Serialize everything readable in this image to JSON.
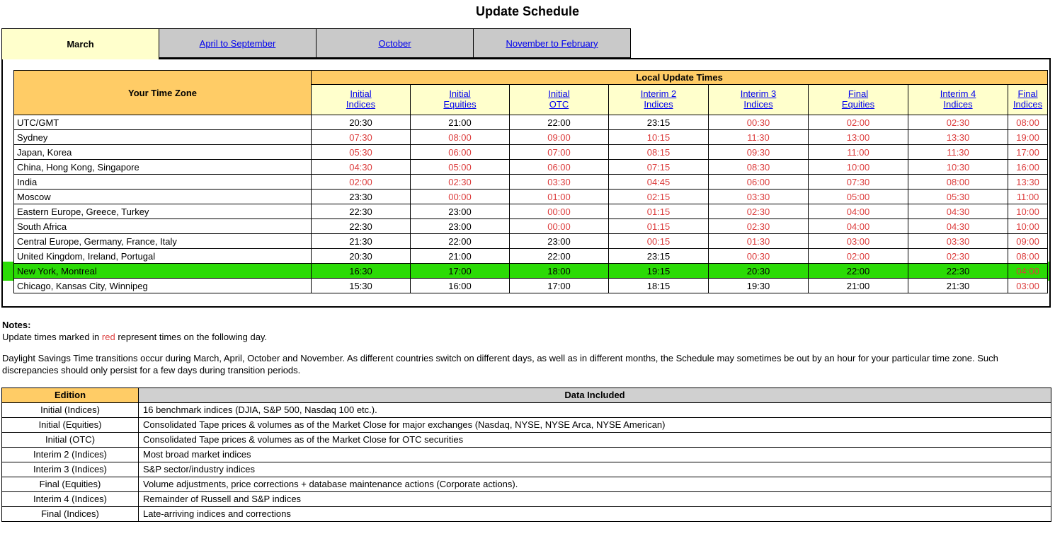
{
  "page": {
    "title": "Update Schedule"
  },
  "colors": {
    "accent_orange": "#FFCC66",
    "pale_yellow": "#FFFFCC",
    "tab_gray": "#C9C9C9",
    "header_gray": "#D0D0D0",
    "highlight_green": "#2BDB06",
    "red_time": "#DC3C3C",
    "link_blue": "#0000EE"
  },
  "tabs": [
    {
      "label": "March",
      "active": true
    },
    {
      "label": "April to September",
      "active": false
    },
    {
      "label": "October",
      "active": false
    },
    {
      "label": "November to February",
      "active": false
    }
  ],
  "schedule_table": {
    "corner_header": "Your Time Zone",
    "group_header": "Local Update Times",
    "columns": [
      "Initial\nIndices",
      "Initial\nEquities",
      "Initial\nOTC",
      "Interim 2\nIndices",
      "Interim 3\nIndices",
      "Final\nEquities",
      "Interim 4\nIndices",
      "Final\nIndices"
    ],
    "rows": [
      {
        "zone": "UTC/GMT",
        "highlight": false,
        "times": [
          "20:30",
          "21:00",
          "22:00",
          "23:15",
          "00:30",
          "02:00",
          "02:30",
          "08:00"
        ],
        "red": [
          false,
          false,
          false,
          false,
          true,
          true,
          true,
          true
        ]
      },
      {
        "zone": "Sydney",
        "highlight": false,
        "times": [
          "07:30",
          "08:00",
          "09:00",
          "10:15",
          "11:30",
          "13:00",
          "13:30",
          "19:00"
        ],
        "red": [
          true,
          true,
          true,
          true,
          true,
          true,
          true,
          true
        ]
      },
      {
        "zone": "Japan, Korea",
        "highlight": false,
        "times": [
          "05:30",
          "06:00",
          "07:00",
          "08:15",
          "09:30",
          "11:00",
          "11:30",
          "17:00"
        ],
        "red": [
          true,
          true,
          true,
          true,
          true,
          true,
          true,
          true
        ]
      },
      {
        "zone": "China, Hong Kong, Singapore",
        "highlight": false,
        "times": [
          "04:30",
          "05:00",
          "06:00",
          "07:15",
          "08:30",
          "10:00",
          "10:30",
          "16:00"
        ],
        "red": [
          true,
          true,
          true,
          true,
          true,
          true,
          true,
          true
        ]
      },
      {
        "zone": "India",
        "highlight": false,
        "times": [
          "02:00",
          "02:30",
          "03:30",
          "04:45",
          "06:00",
          "07:30",
          "08:00",
          "13:30"
        ],
        "red": [
          true,
          true,
          true,
          true,
          true,
          true,
          true,
          true
        ]
      },
      {
        "zone": "Moscow",
        "highlight": false,
        "times": [
          "23:30",
          "00:00",
          "01:00",
          "02:15",
          "03:30",
          "05:00",
          "05:30",
          "11:00"
        ],
        "red": [
          false,
          true,
          true,
          true,
          true,
          true,
          true,
          true
        ]
      },
      {
        "zone": "Eastern Europe, Greece, Turkey",
        "highlight": false,
        "times": [
          "22:30",
          "23:00",
          "00:00",
          "01:15",
          "02:30",
          "04:00",
          "04:30",
          "10:00"
        ],
        "red": [
          false,
          false,
          true,
          true,
          true,
          true,
          true,
          true
        ]
      },
      {
        "zone": "South Africa",
        "highlight": false,
        "times": [
          "22:30",
          "23:00",
          "00:00",
          "01:15",
          "02:30",
          "04:00",
          "04:30",
          "10:00"
        ],
        "red": [
          false,
          false,
          true,
          true,
          true,
          true,
          true,
          true
        ]
      },
      {
        "zone": "Central Europe, Germany, France, Italy",
        "highlight": false,
        "times": [
          "21:30",
          "22:00",
          "23:00",
          "00:15",
          "01:30",
          "03:00",
          "03:30",
          "09:00"
        ],
        "red": [
          false,
          false,
          false,
          true,
          true,
          true,
          true,
          true
        ]
      },
      {
        "zone": "United Kingdom, Ireland, Portugal",
        "highlight": false,
        "times": [
          "20:30",
          "21:00",
          "22:00",
          "23:15",
          "00:30",
          "02:00",
          "02:30",
          "08:00"
        ],
        "red": [
          false,
          false,
          false,
          false,
          true,
          true,
          true,
          true
        ]
      },
      {
        "zone": "New York, Montreal",
        "highlight": true,
        "times": [
          "16:30",
          "17:00",
          "18:00",
          "19:15",
          "20:30",
          "22:00",
          "22:30",
          "04:00"
        ],
        "red": [
          false,
          false,
          false,
          false,
          false,
          false,
          false,
          true
        ]
      },
      {
        "zone": "Chicago, Kansas City, Winnipeg",
        "highlight": false,
        "times": [
          "15:30",
          "16:00",
          "17:00",
          "18:15",
          "19:30",
          "21:00",
          "21:30",
          "03:00"
        ],
        "red": [
          false,
          false,
          false,
          false,
          false,
          false,
          false,
          true
        ]
      }
    ]
  },
  "notes": {
    "heading": "Notes:",
    "line1_prefix": "Update times marked in ",
    "red_word": "red",
    "line1_suffix": " represent times on the following day.",
    "paragraph": "Daylight Savings Time transitions occur during March, April, October and November. As different countries switch on different days, as well as in different months, the Schedule may sometimes be out by an hour for your particular time zone. Such discrepancies should only persist for a few days during transition periods."
  },
  "edition_table": {
    "headers": [
      "Edition",
      "Data Included"
    ],
    "rows": [
      {
        "edition": "Initial (Indices)",
        "data": "16 benchmark indices (DJIA, S&P 500, Nasdaq 100 etc.)."
      },
      {
        "edition": "Initial (Equities)",
        "data": "Consolidated Tape prices & volumes as of the Market Close for major exchanges (Nasdaq, NYSE, NYSE Arca, NYSE American)"
      },
      {
        "edition": "Initial (OTC)",
        "data": "Consolidated Tape prices & volumes as of the Market Close for OTC securities"
      },
      {
        "edition": "Interim 2 (Indices)",
        "data": "Most broad market indices"
      },
      {
        "edition": "Interim 3 (Indices)",
        "data": "S&P sector/industry indices"
      },
      {
        "edition": "Final (Equities)",
        "data": "Volume adjustments, price corrections + database maintenance actions (Corporate actions)."
      },
      {
        "edition": "Interim 4 (Indices)",
        "data": "Remainder of Russell and S&P indices"
      },
      {
        "edition": "Final (Indices)",
        "data": "Late-arriving indices and corrections"
      }
    ]
  }
}
